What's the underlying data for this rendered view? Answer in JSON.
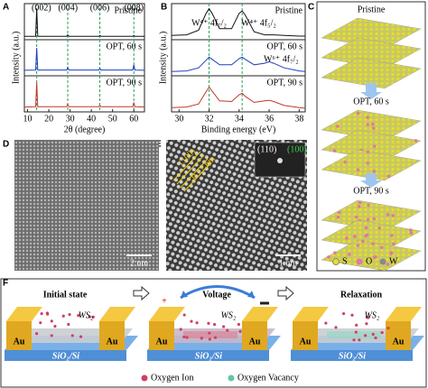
{
  "panel_labels": [
    "A",
    "B",
    "C",
    "D",
    "E",
    "F"
  ],
  "chart_data": [
    {
      "type": "line",
      "xlabel": "2θ (degree)",
      "ylabel": "Intensity (a.u.)",
      "xlim": [
        8.5,
        65
      ],
      "xticks": [
        10,
        20,
        30,
        40,
        50,
        60
      ],
      "ylim": [
        0,
        100
      ],
      "x": [
        8.5,
        13.8,
        14.3,
        14.8,
        28.4,
        28.9,
        29.4,
        43.5,
        44,
        44.5,
        59.5,
        60,
        60.5,
        65
      ],
      "series": [
        {
          "name": "Pristine",
          "color": "#111111",
          "values": [
            5,
            5,
            95,
            5,
            5,
            10,
            5,
            5,
            8,
            5,
            5,
            8,
            5,
            5
          ]
        },
        {
          "name": "OPT, 60 s",
          "color": "#1f3fbf",
          "values": [
            12,
            13,
            85,
            13,
            13,
            22,
            13,
            13,
            18,
            13,
            13,
            30,
            13,
            12
          ]
        },
        {
          "name": "OPT, 90 s",
          "color": "#c0392b",
          "values": [
            10,
            11,
            90,
            11,
            11,
            20,
            11,
            11,
            15,
            11,
            11,
            25,
            11,
            10
          ]
        }
      ],
      "guide_x": [
        14.3,
        28.9,
        44,
        60
      ],
      "guide_color": "#2a9d5a",
      "annotations": [
        {
          "text": "(002)",
          "x": 16.5
        },
        {
          "text": "(004)",
          "x": 29
        },
        {
          "text": "(006)",
          "x": 44
        },
        {
          "text": "(008)",
          "x": 60
        }
      ]
    },
    {
      "type": "line",
      "xlabel": "Binding energy (eV)",
      "ylabel": "Intensity (a.u.)",
      "xlim": [
        29.5,
        38.4
      ],
      "xticks": [
        30,
        32,
        34,
        36,
        38
      ],
      "ylim": [
        0,
        100
      ],
      "x": [
        29.5,
        30.5,
        31.3,
        31.8,
        32,
        32.2,
        32.7,
        33.5,
        34,
        34.2,
        34.4,
        35,
        35.7,
        36,
        36.3,
        37,
        38,
        38.4
      ],
      "series": [
        {
          "name": "Pristine",
          "color": "#111111",
          "values": [
            8,
            10,
            25,
            80,
            95,
            80,
            30,
            30,
            80,
            88,
            75,
            20,
            10,
            10,
            10,
            8,
            6,
            6
          ]
        },
        {
          "name": "OPT, 60 s",
          "color": "#1f3fbf",
          "values": [
            8,
            10,
            20,
            45,
            55,
            48,
            30,
            30,
            50,
            55,
            48,
            30,
            35,
            40,
            35,
            20,
            10,
            8
          ]
        },
        {
          "name": "OPT, 90 s",
          "color": "#c0392b",
          "values": [
            8,
            10,
            20,
            60,
            75,
            62,
            30,
            28,
            50,
            55,
            45,
            25,
            30,
            32,
            28,
            15,
            8,
            6
          ]
        }
      ],
      "guide_x": [
        32,
        34.2
      ],
      "guide_color": "#2a9d5a",
      "annotations": [
        {
          "text": "W⁴⁺ 4f₇/₂",
          "x": 32,
          "series": 0
        },
        {
          "text": "W⁴⁺ 4f₅/₂",
          "x": 35.3,
          "series": 0
        },
        {
          "text": "W⁶⁺ 4f₇/₂",
          "x": 36.8,
          "series": 1
        }
      ]
    }
  ],
  "panel_c": {
    "stages": [
      "Pristine",
      "OPT, 60 s",
      "OPT, 90 s"
    ],
    "legend": [
      "S",
      "O",
      "W"
    ]
  },
  "panel_d": {
    "scale_bar": "2 nm"
  },
  "panel_e": {
    "scale_bar": "1 nm",
    "plane": "(100)",
    "spacing": "0.27 nm",
    "inset": [
      "(110)",
      "(100)"
    ]
  },
  "panel_f": {
    "stages": [
      "Initial state",
      "Voltage",
      "Relaxation"
    ],
    "film": "WS₂",
    "electrode": "Au",
    "substrate": "SiO₂/Si",
    "legend": [
      "Oxygen Ion",
      "Oxygen Vacancy"
    ]
  }
}
